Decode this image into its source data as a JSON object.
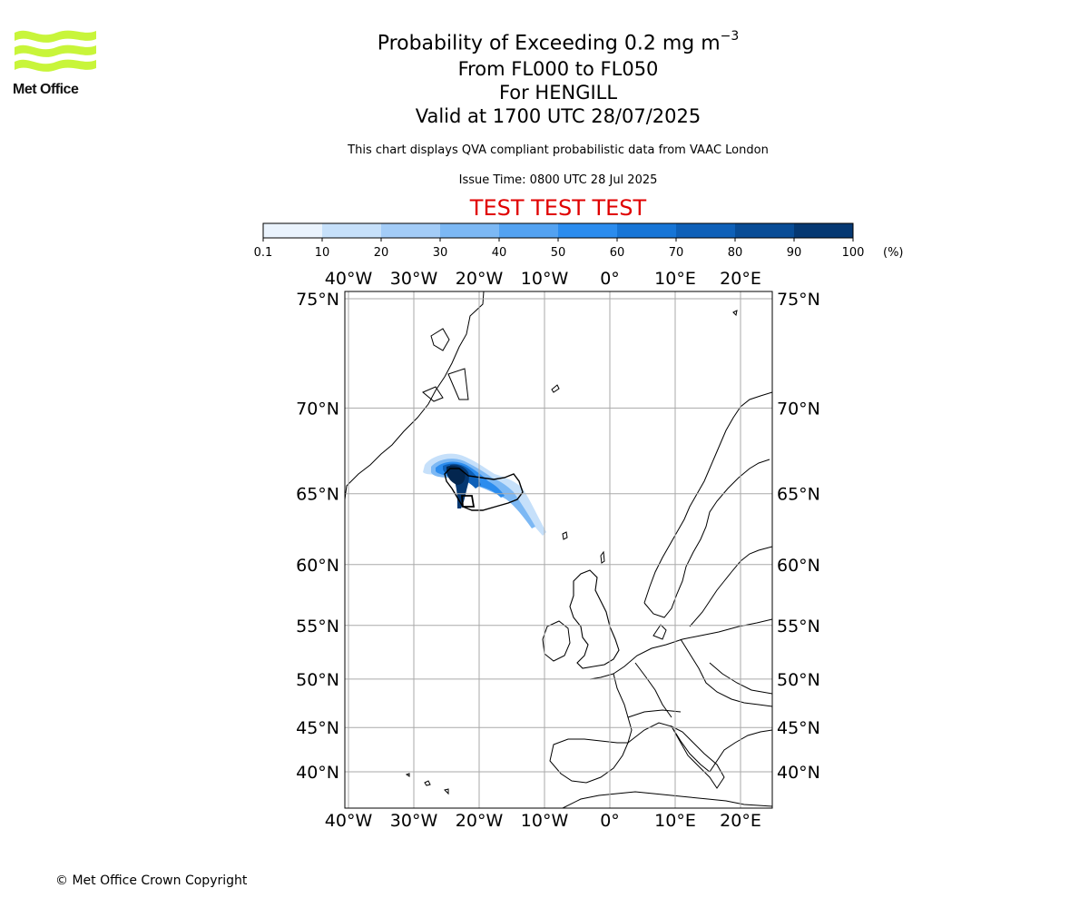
{
  "logo": {
    "text": "Met Office",
    "brand_color": "#c8f53a"
  },
  "title": {
    "line1_prefix": "Probability of Exceeding 0.2 mg m",
    "line1_exponent": "−3",
    "line2": "From FL000 to FL050",
    "line3": "For HENGILL",
    "line4": "Valid at 1700 UTC 28/07/2025"
  },
  "subtitle": "This chart displays QVA compliant probabilistic data from VAAC London",
  "issue_time": "Issue Time: 0800 UTC 28 Jul 2025",
  "test_banner": "TEST TEST TEST",
  "test_banner_color": "#e00000",
  "colorbar": {
    "ticks": [
      "0.1",
      "10",
      "20",
      "30",
      "40",
      "50",
      "60",
      "70",
      "80",
      "90",
      "100"
    ],
    "unit": "(%)",
    "colors": [
      "#eaf3fd",
      "#c6e0fa",
      "#a3ccf7",
      "#7cb8f4",
      "#53a2f1",
      "#2b8cee",
      "#1775d6",
      "#0e60b8",
      "#084c96",
      "#053872",
      "#03264f"
    ]
  },
  "map": {
    "lon_labels": [
      "40°W",
      "30°W",
      "20°W",
      "10°W",
      "0°",
      "10°E",
      "20°E"
    ],
    "lat_labels": [
      "75°N",
      "70°N",
      "65°N",
      "60°N",
      "55°N",
      "50°N",
      "45°N",
      "40°N"
    ],
    "lons": [
      -40,
      -30,
      -20,
      -10,
      0,
      10,
      20
    ],
    "lats": [
      75,
      70,
      65,
      60,
      55,
      50,
      45,
      40
    ],
    "grid": true,
    "gridline_color": "#aaaaaa"
  },
  "copyright": "© Met Office Crown Copyright"
}
